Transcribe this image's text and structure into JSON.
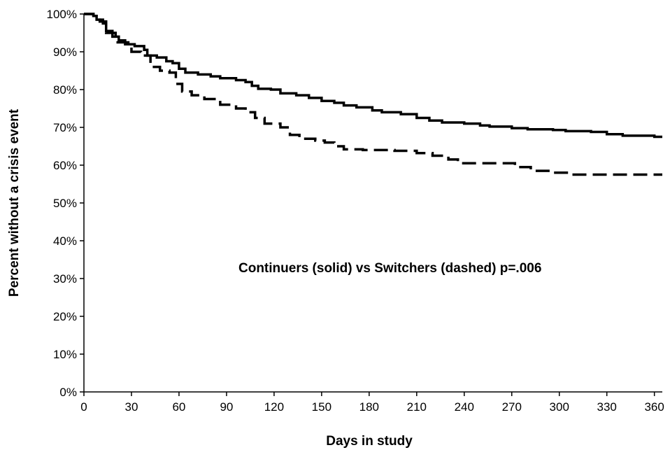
{
  "chart_data": {
    "type": "line",
    "title": "",
    "xlabel": "Days in study",
    "ylabel": "Percent without a crisis event",
    "xlim": [
      0,
      365
    ],
    "ylim": [
      0,
      100
    ],
    "x_ticks": [
      0,
      30,
      60,
      90,
      120,
      150,
      180,
      210,
      240,
      270,
      300,
      330,
      360
    ],
    "x_tick_labels": [
      "0",
      "30",
      "60",
      "90",
      "120",
      "150",
      "180",
      "210",
      "240",
      "270",
      "300",
      "330",
      "360"
    ],
    "y_ticks": [
      0,
      10,
      20,
      30,
      40,
      50,
      60,
      70,
      80,
      90,
      100
    ],
    "y_tick_labels": [
      "0%",
      "10%",
      "20%",
      "30%",
      "40%",
      "50%",
      "60%",
      "70%",
      "80%",
      "90%",
      "100%"
    ],
    "grid": false,
    "legend": "none",
    "annotation": "Continuers (solid) vs Switchers (dashed)  p=.006",
    "series": [
      {
        "style": "solid",
        "color": "#000000",
        "points": [
          [
            0,
            100
          ],
          [
            6,
            99.5
          ],
          [
            8,
            98.5
          ],
          [
            12,
            97.5
          ],
          [
            14,
            95.5
          ],
          [
            18,
            94
          ],
          [
            22,
            93
          ],
          [
            26,
            92
          ],
          [
            32,
            91.5
          ],
          [
            38,
            90.5
          ],
          [
            40,
            89
          ],
          [
            46,
            88.5
          ],
          [
            52,
            87.5
          ],
          [
            56,
            87
          ],
          [
            60,
            85.5
          ],
          [
            64,
            84.5
          ],
          [
            72,
            84
          ],
          [
            80,
            83.5
          ],
          [
            86,
            83
          ],
          [
            96,
            82.5
          ],
          [
            102,
            82
          ],
          [
            106,
            81
          ],
          [
            110,
            80.2
          ],
          [
            118,
            80
          ],
          [
            124,
            79
          ],
          [
            134,
            78.5
          ],
          [
            142,
            77.8
          ],
          [
            150,
            77
          ],
          [
            158,
            76.5
          ],
          [
            164,
            75.8
          ],
          [
            172,
            75.3
          ],
          [
            182,
            74.5
          ],
          [
            188,
            74
          ],
          [
            200,
            73.5
          ],
          [
            210,
            72.5
          ],
          [
            218,
            71.8
          ],
          [
            226,
            71.3
          ],
          [
            240,
            71
          ],
          [
            250,
            70.5
          ],
          [
            256,
            70.2
          ],
          [
            270,
            69.8
          ],
          [
            280,
            69.5
          ],
          [
            296,
            69.3
          ],
          [
            304,
            69
          ],
          [
            320,
            68.8
          ],
          [
            330,
            68.2
          ],
          [
            340,
            67.8
          ],
          [
            360,
            67.5
          ],
          [
            365,
            67.5
          ]
        ]
      },
      {
        "style": "dashed",
        "color": "#000000",
        "points": [
          [
            0,
            100
          ],
          [
            6,
            99.5
          ],
          [
            10,
            98
          ],
          [
            14,
            95
          ],
          [
            20,
            92.5
          ],
          [
            28,
            91.5
          ],
          [
            30,
            90
          ],
          [
            36,
            89
          ],
          [
            42,
            86
          ],
          [
            48,
            85
          ],
          [
            54,
            84.5
          ],
          [
            58,
            81.5
          ],
          [
            62,
            79.5
          ],
          [
            68,
            78.5
          ],
          [
            76,
            77.5
          ],
          [
            86,
            76
          ],
          [
            96,
            75
          ],
          [
            102,
            74
          ],
          [
            108,
            72.5
          ],
          [
            114,
            71
          ],
          [
            124,
            70
          ],
          [
            130,
            68
          ],
          [
            136,
            67
          ],
          [
            146,
            66.5
          ],
          [
            152,
            66
          ],
          [
            158,
            65
          ],
          [
            164,
            64.2
          ],
          [
            176,
            64
          ],
          [
            196,
            63.8
          ],
          [
            210,
            63.2
          ],
          [
            220,
            62.5
          ],
          [
            230,
            61.5
          ],
          [
            236,
            60.5
          ],
          [
            250,
            60.5
          ],
          [
            266,
            60.5
          ],
          [
            272,
            59.5
          ],
          [
            282,
            58.5
          ],
          [
            294,
            58
          ],
          [
            306,
            57.5
          ],
          [
            320,
            57.5
          ],
          [
            365,
            57.5
          ]
        ]
      }
    ]
  }
}
